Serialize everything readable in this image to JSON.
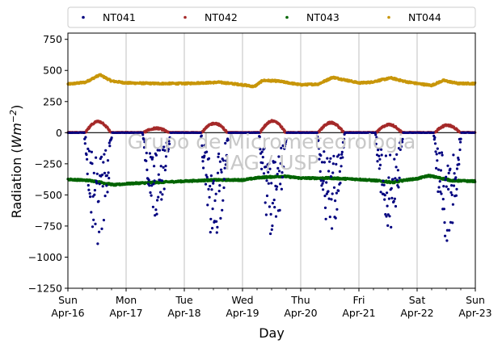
{
  "chart_data": {
    "type": "scatter",
    "xlabel": "Day",
    "ylabel_main": "Radiation (",
    "ylabel_unit": "Wm",
    "ylabel_exp": "−2",
    "ylabel_close": ")",
    "ylim": [
      -1250,
      800
    ],
    "yticks": [
      {
        "value": 750,
        "label": "750"
      },
      {
        "value": 500,
        "label": "500"
      },
      {
        "value": 250,
        "label": "250"
      },
      {
        "value": 0,
        "label": "0"
      },
      {
        "value": -250,
        "label": "−250"
      },
      {
        "value": -500,
        "label": "−500"
      },
      {
        "value": -750,
        "label": "−750"
      },
      {
        "value": -1000,
        "label": "−1000"
      },
      {
        "value": -1250,
        "label": "−1250"
      }
    ],
    "xlim": [
      0,
      7
    ],
    "xticks": [
      {
        "day": 0,
        "line1": "Sun",
        "line2": "Apr-16"
      },
      {
        "day": 1,
        "line1": "Mon",
        "line2": "Apr-17"
      },
      {
        "day": 2,
        "line1": "Tue",
        "line2": "Apr-18"
      },
      {
        "day": 3,
        "line1": "Wed",
        "line2": "Apr-19"
      },
      {
        "day": 4,
        "line1": "Thu",
        "line2": "Apr-20"
      },
      {
        "day": 5,
        "line1": "Fri",
        "line2": "Apr-21"
      },
      {
        "day": 6,
        "line1": "Sat",
        "line2": "Apr-22"
      },
      {
        "day": 7,
        "line1": "Sun",
        "line2": "Apr-23"
      }
    ],
    "grid": "vertical",
    "legend_position": "top, outside",
    "watermark": [
      "Grupo de Micrometeorologia",
      "IAG / USP"
    ],
    "series": [
      {
        "name": "NT041",
        "color": "#00007f",
        "profile": "daytime dips, minimum per day",
        "daily_min": [
          -920,
          -700,
          -930,
          -880,
          -820,
          -820,
          -900
        ],
        "zero_value": 0
      },
      {
        "name": "NT042",
        "color": "#a52a2a",
        "profile": "near zero at night, daytime positive arcs",
        "night_value": 2,
        "daily_peak": [
          90,
          35,
          75,
          95,
          80,
          65,
          60
        ]
      },
      {
        "name": "NT043",
        "color": "#006400",
        "profile": "continuous band",
        "keypoints": [
          [
            0.0,
            -375
          ],
          [
            0.4,
            -385
          ],
          [
            0.8,
            -420
          ],
          [
            1.0,
            -410
          ],
          [
            1.5,
            -400
          ],
          [
            2.0,
            -390
          ],
          [
            2.5,
            -380
          ],
          [
            3.0,
            -380
          ],
          [
            3.3,
            -360
          ],
          [
            3.7,
            -350
          ],
          [
            4.0,
            -365
          ],
          [
            4.5,
            -365
          ],
          [
            5.0,
            -375
          ],
          [
            5.3,
            -385
          ],
          [
            5.6,
            -400
          ],
          [
            5.8,
            -380
          ],
          [
            6.0,
            -370
          ],
          [
            6.2,
            -345
          ],
          [
            6.4,
            -365
          ],
          [
            6.6,
            -385
          ],
          [
            7.0,
            -390
          ]
        ]
      },
      {
        "name": "NT044",
        "color": "#c8960a",
        "profile": "continuous band",
        "keypoints": [
          [
            0.0,
            390
          ],
          [
            0.3,
            405
          ],
          [
            0.55,
            465
          ],
          [
            0.75,
            415
          ],
          [
            1.0,
            400
          ],
          [
            1.5,
            395
          ],
          [
            2.0,
            395
          ],
          [
            2.6,
            405
          ],
          [
            3.0,
            385
          ],
          [
            3.2,
            370
          ],
          [
            3.35,
            420
          ],
          [
            3.6,
            415
          ],
          [
            4.0,
            385
          ],
          [
            4.3,
            390
          ],
          [
            4.55,
            445
          ],
          [
            4.8,
            420
          ],
          [
            5.0,
            400
          ],
          [
            5.2,
            405
          ],
          [
            5.55,
            440
          ],
          [
            5.8,
            410
          ],
          [
            6.0,
            395
          ],
          [
            6.25,
            380
          ],
          [
            6.45,
            420
          ],
          [
            6.7,
            395
          ],
          [
            7.0,
            395
          ]
        ]
      }
    ]
  }
}
